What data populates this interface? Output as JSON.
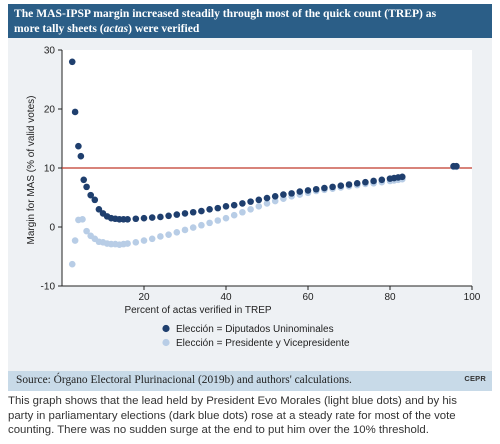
{
  "header": {
    "title_line1": "The MAS-IPSP margin increased steadily through most of the quick count (TREP) as",
    "title_line2_pre": "more tally sheets (",
    "title_line2_em": "actas",
    "title_line2_post": ") were verified"
  },
  "source": {
    "text": "Source: Órgano Electoral Plurinacional (2019b) and authors' calculations.",
    "logo": "CEPR"
  },
  "caption": {
    "line1": "This graph shows that the lead held by President Evo Morales (light blue dots) and by his",
    "line2": "party in parliamentary elections (dark blue dots) rose at a steady rate for most of the vote",
    "line3": "counting. There was no sudden surge at the end to put him over the 10% threshold."
  },
  "chart_data": {
    "type": "scatter",
    "title": "The MAS-IPSP margin increased steadily through most of the quick count (TREP) as more tally sheets (actas) were verified",
    "xlabel": "Percent of actas verified in TREP",
    "ylabel": "Margin for MAS (% of valid votes)",
    "xlim": [
      0,
      100
    ],
    "ylim": [
      -10,
      30
    ],
    "xticks": [
      20,
      40,
      60,
      80,
      100
    ],
    "yticks": [
      -10,
      0,
      10,
      20,
      30
    ],
    "grid": false,
    "legend_position": "bottom",
    "reference_line": {
      "y": 10,
      "color": "#c0392b"
    },
    "series": [
      {
        "name": "Elección = Diputados Uninominales",
        "color": "#1f3f6e",
        "x": [
          2.5,
          3.2,
          4.0,
          4.6,
          5.3,
          6.0,
          7.0,
          8.0,
          9.0,
          10,
          11,
          12,
          13,
          14,
          15,
          16,
          18,
          20,
          22,
          24,
          26,
          28,
          30,
          32,
          34,
          36,
          38,
          40,
          42,
          44,
          46,
          48,
          50,
          52,
          54,
          56,
          58,
          60,
          62,
          64,
          66,
          68,
          70,
          72,
          74,
          76,
          78,
          80,
          81,
          82,
          83,
          95.5,
          96.2
        ],
        "y": [
          28.0,
          19.5,
          13.7,
          12.0,
          8.0,
          6.8,
          5.4,
          4.6,
          3.0,
          2.3,
          1.8,
          1.5,
          1.4,
          1.3,
          1.3,
          1.3,
          1.4,
          1.5,
          1.6,
          1.7,
          1.9,
          2.1,
          2.3,
          2.5,
          2.7,
          3.0,
          3.2,
          3.5,
          3.7,
          4.0,
          4.3,
          4.6,
          4.9,
          5.2,
          5.5,
          5.7,
          6.0,
          6.2,
          6.4,
          6.6,
          6.8,
          7.0,
          7.2,
          7.4,
          7.6,
          7.8,
          8.0,
          8.2,
          8.3,
          8.4,
          8.5,
          10.3,
          10.3
        ]
      },
      {
        "name": "Elección = Presidente y Vicepresidente",
        "color": "#b8cde6",
        "x": [
          2.5,
          3.2,
          4.0,
          5.0,
          6.0,
          7.0,
          8.0,
          9.0,
          10,
          11,
          12,
          13,
          14,
          15,
          16,
          18,
          20,
          22,
          24,
          26,
          28,
          30,
          32,
          34,
          36,
          38,
          40,
          42,
          44,
          46,
          48,
          50,
          52,
          54,
          56,
          58,
          60,
          62,
          64,
          66,
          68,
          70,
          72,
          74,
          76,
          78,
          80,
          81,
          82,
          83,
          95.5,
          96.2
        ],
        "y": [
          -6.3,
          -2.3,
          1.2,
          1.3,
          -0.7,
          -1.5,
          -2.0,
          -2.5,
          -2.6,
          -2.8,
          -2.9,
          -2.9,
          -3.0,
          -2.9,
          -2.8,
          -2.6,
          -2.3,
          -2.0,
          -1.6,
          -1.3,
          -0.9,
          -0.5,
          -0.1,
          0.3,
          0.7,
          1.1,
          1.5,
          2.0,
          2.5,
          3.0,
          3.5,
          4.0,
          4.4,
          4.8,
          5.2,
          5.5,
          5.8,
          6.1,
          6.3,
          6.5,
          6.7,
          6.9,
          7.1,
          7.3,
          7.4,
          7.6,
          7.8,
          7.9,
          8.0,
          8.1,
          10.2,
          10.2
        ]
      }
    ]
  }
}
